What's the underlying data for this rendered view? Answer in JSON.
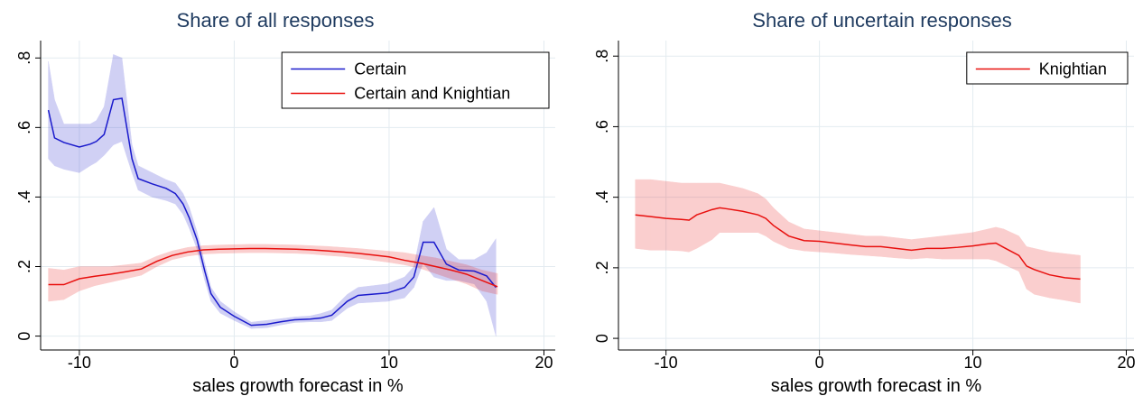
{
  "chart_data": [
    {
      "type": "line",
      "title": "Share of all responses",
      "x_label": "sales growth forecast in %",
      "xlim": [
        -12.5,
        20.73
      ],
      "ylim": [
        -0.04,
        0.85
      ],
      "xticks": [
        -10,
        0,
        10,
        20
      ],
      "yticks": [
        0,
        {
          "value": 0.2,
          "label": ".2"
        },
        {
          "value": 0.4,
          "label": ".4"
        },
        {
          "value": 0.6,
          "label": ".6"
        },
        {
          "value": 0.8,
          "label": ".8"
        }
      ],
      "grid": true,
      "legend": "top-right",
      "series": [
        {
          "name": "Certain",
          "color": "#1a1acc",
          "x": [
            -12,
            -11.6,
            -11,
            -10,
            -9.3,
            -8.9,
            -8.4,
            -7.8,
            -7.25,
            -6.6,
            -6.2,
            -5.3,
            -4.4,
            -3.8,
            -3.3,
            -2.9,
            -2.4,
            -1.9,
            -1.5,
            -0.9,
            0,
            1.1,
            2.1,
            3,
            3.9,
            4.9,
            5.6,
            6.3,
            7.3,
            8,
            9.9,
            11,
            11.6,
            12.2,
            12.9,
            13.7,
            14.5,
            15.5,
            16.3,
            16.9
          ],
          "values": [
            0.65,
            0.57,
            0.557,
            0.544,
            0.552,
            0.56,
            0.58,
            0.68,
            0.684,
            0.51,
            0.453,
            0.438,
            0.425,
            0.41,
            0.38,
            0.34,
            0.277,
            0.187,
            0.122,
            0.083,
            0.057,
            0.031,
            0.034,
            0.041,
            0.047,
            0.049,
            0.052,
            0.06,
            0.1,
            0.117,
            0.124,
            0.14,
            0.17,
            0.27,
            0.27,
            0.207,
            0.19,
            0.187,
            0.173,
            0.14
          ],
          "upper": [
            0.79,
            0.68,
            0.61,
            0.61,
            0.61,
            0.62,
            0.66,
            0.81,
            0.8,
            0.55,
            0.49,
            0.47,
            0.45,
            0.44,
            0.41,
            0.37,
            0.3,
            0.21,
            0.14,
            0.1,
            0.07,
            0.04,
            0.045,
            0.05,
            0.055,
            0.058,
            0.065,
            0.075,
            0.12,
            0.14,
            0.15,
            0.17,
            0.2,
            0.33,
            0.37,
            0.25,
            0.22,
            0.22,
            0.24,
            0.28
          ],
          "lower": [
            0.51,
            0.49,
            0.48,
            0.47,
            0.49,
            0.5,
            0.52,
            0.55,
            0.56,
            0.47,
            0.42,
            0.4,
            0.39,
            0.38,
            0.35,
            0.31,
            0.25,
            0.16,
            0.1,
            0.066,
            0.045,
            0.022,
            0.024,
            0.032,
            0.039,
            0.041,
            0.041,
            0.045,
            0.08,
            0.095,
            0.1,
            0.11,
            0.14,
            0.21,
            0.17,
            0.16,
            0.16,
            0.15,
            0.1,
            0.0
          ]
        },
        {
          "name": "Certain and Knightian",
          "color": "#e8100e",
          "x": [
            -12,
            -11,
            -10,
            -9,
            -8,
            -7,
            -6,
            -5,
            -4,
            -3,
            -2,
            -1,
            0,
            1,
            2,
            3,
            4,
            5,
            6,
            7,
            8,
            9,
            10,
            11,
            12,
            13,
            14,
            15,
            16,
            17
          ],
          "values": [
            0.148,
            0.148,
            0.165,
            0.172,
            0.178,
            0.185,
            0.193,
            0.215,
            0.232,
            0.242,
            0.248,
            0.25,
            0.251,
            0.252,
            0.252,
            0.251,
            0.25,
            0.248,
            0.245,
            0.242,
            0.238,
            0.233,
            0.228,
            0.218,
            0.21,
            0.2,
            0.19,
            0.178,
            0.16,
            0.142
          ],
          "upper": [
            0.195,
            0.19,
            0.2,
            0.2,
            0.2,
            0.205,
            0.21,
            0.23,
            0.245,
            0.255,
            0.26,
            0.262,
            0.263,
            0.264,
            0.264,
            0.263,
            0.262,
            0.26,
            0.258,
            0.255,
            0.252,
            0.248,
            0.244,
            0.24,
            0.232,
            0.225,
            0.215,
            0.205,
            0.19,
            0.18
          ],
          "lower": [
            0.1,
            0.105,
            0.13,
            0.145,
            0.155,
            0.165,
            0.175,
            0.2,
            0.22,
            0.23,
            0.236,
            0.238,
            0.239,
            0.24,
            0.24,
            0.239,
            0.238,
            0.236,
            0.232,
            0.229,
            0.224,
            0.218,
            0.212,
            0.205,
            0.195,
            0.18,
            0.165,
            0.15,
            0.13,
            0.12
          ]
        }
      ]
    },
    {
      "type": "line",
      "title": "Share of uncertain responses",
      "x_label": "sales growth forecast in %",
      "xlim": [
        -13.1,
        20.5
      ],
      "ylim": [
        -0.033,
        0.844
      ],
      "xticks": [
        -10,
        0,
        10,
        20
      ],
      "yticks": [
        0,
        {
          "value": 0.2,
          "label": ".2"
        },
        {
          "value": 0.4,
          "label": ".4"
        },
        {
          "value": 0.6,
          "label": ".6"
        },
        {
          "value": 0.8,
          "label": ".8"
        }
      ],
      "grid": true,
      "legend": "top-right",
      "series": [
        {
          "name": "Knightian",
          "color": "#e8100e",
          "x": [
            -12,
            -11,
            -10,
            -9,
            -8.5,
            -8,
            -7,
            -6.5,
            -6,
            -5,
            -4,
            -3.5,
            -3,
            -2,
            -1,
            0,
            1,
            2,
            3,
            4,
            5,
            6,
            7,
            8,
            9,
            10,
            11,
            11.5,
            12,
            13,
            13.5,
            14,
            15,
            16,
            17
          ],
          "values": [
            0.35,
            0.345,
            0.34,
            0.337,
            0.335,
            0.35,
            0.365,
            0.37,
            0.367,
            0.36,
            0.35,
            0.34,
            0.32,
            0.29,
            0.277,
            0.275,
            0.27,
            0.265,
            0.26,
            0.26,
            0.255,
            0.25,
            0.255,
            0.255,
            0.258,
            0.262,
            0.268,
            0.27,
            0.258,
            0.235,
            0.205,
            0.195,
            0.18,
            0.172,
            0.168
          ],
          "upper": [
            0.45,
            0.45,
            0.445,
            0.44,
            0.44,
            0.44,
            0.44,
            0.44,
            0.435,
            0.425,
            0.41,
            0.395,
            0.37,
            0.33,
            0.31,
            0.305,
            0.3,
            0.295,
            0.29,
            0.29,
            0.285,
            0.28,
            0.285,
            0.29,
            0.295,
            0.3,
            0.31,
            0.315,
            0.31,
            0.29,
            0.26,
            0.255,
            0.245,
            0.24,
            0.235
          ],
          "lower": [
            0.255,
            0.25,
            0.25,
            0.248,
            0.245,
            0.255,
            0.28,
            0.3,
            0.3,
            0.3,
            0.3,
            0.29,
            0.275,
            0.255,
            0.248,
            0.245,
            0.242,
            0.238,
            0.235,
            0.232,
            0.228,
            0.225,
            0.228,
            0.225,
            0.225,
            0.225,
            0.225,
            0.22,
            0.21,
            0.19,
            0.14,
            0.125,
            0.115,
            0.108,
            0.1
          ]
        }
      ]
    }
  ]
}
